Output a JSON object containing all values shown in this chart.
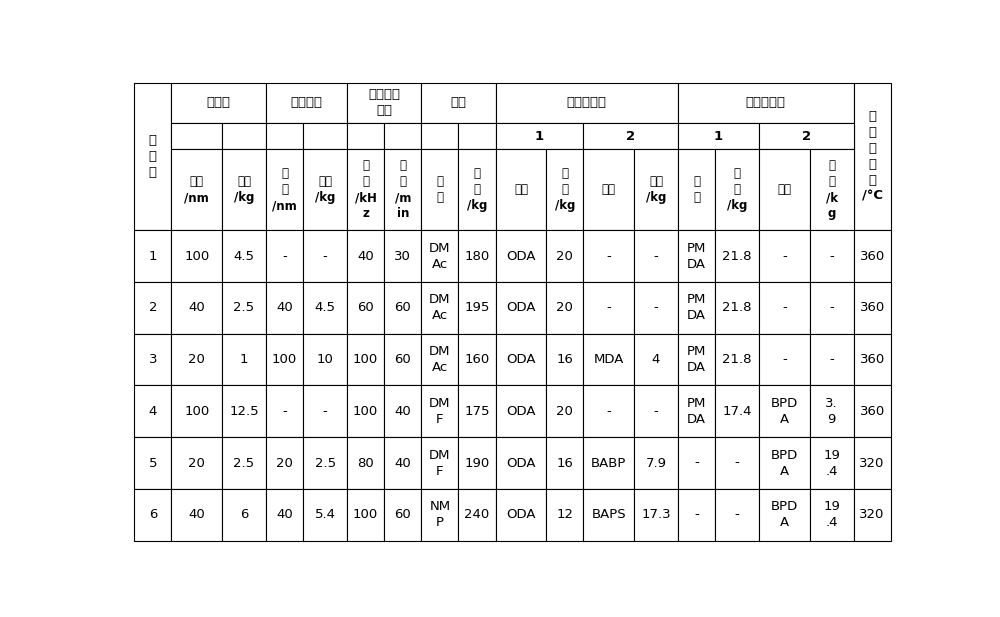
{
  "bg_color": "#ffffff",
  "text_color": "#000000",
  "col_widths_rel": [
    2.2,
    3.0,
    2.6,
    2.2,
    2.6,
    2.2,
    2.2,
    2.2,
    2.2,
    3.0,
    2.2,
    3.0,
    2.6,
    2.2,
    2.6,
    3.0,
    2.6,
    2.2
  ],
  "row_heights_rel": [
    5.5,
    3.5,
    11.0,
    7.0,
    7.0,
    7.0,
    7.0,
    7.0,
    7.0
  ],
  "header_row0": [
    {
      "text": "实\n施\n例",
      "c0": 0,
      "c1": 1,
      "r0": 0,
      "r1": 3
    },
    {
      "text": "碳酸馒",
      "c0": 1,
      "c1": 3,
      "r0": 0,
      "r1": 1
    },
    {
      "text": "二氧化硫",
      "c0": 3,
      "c1": 5,
      "r0": 0,
      "r1": 1
    },
    {
      "text": "超声处理\n条件",
      "c0": 5,
      "c1": 7,
      "r0": 0,
      "r1": 1
    },
    {
      "text": "溶剂",
      "c0": 7,
      "c1": 9,
      "r0": 0,
      "r1": 1
    },
    {
      "text": "芳香族二胺",
      "c0": 9,
      "c1": 13,
      "r0": 0,
      "r1": 1
    },
    {
      "text": "芳香族二酆",
      "c0": 13,
      "c1": 17,
      "r0": 0,
      "r1": 1
    },
    {
      "text": "亚\n胺\n化\n温\n度\n/°C",
      "c0": 17,
      "c1": 18,
      "r0": 0,
      "r1": 3
    }
  ],
  "header_row1": [
    {
      "text": "",
      "c0": 1,
      "c1": 2,
      "r0": 1,
      "r1": 2
    },
    {
      "text": "",
      "c0": 2,
      "c1": 3,
      "r0": 1,
      "r1": 2
    },
    {
      "text": "",
      "c0": 3,
      "c1": 4,
      "r0": 1,
      "r1": 2
    },
    {
      "text": "",
      "c0": 4,
      "c1": 5,
      "r0": 1,
      "r1": 2
    },
    {
      "text": "",
      "c0": 5,
      "c1": 6,
      "r0": 1,
      "r1": 2
    },
    {
      "text": "",
      "c0": 6,
      "c1": 7,
      "r0": 1,
      "r1": 2
    },
    {
      "text": "",
      "c0": 7,
      "c1": 8,
      "r0": 1,
      "r1": 2
    },
    {
      "text": "",
      "c0": 8,
      "c1": 9,
      "r0": 1,
      "r1": 2
    },
    {
      "text": "1",
      "c0": 9,
      "c1": 11,
      "r0": 1,
      "r1": 2
    },
    {
      "text": "2",
      "c0": 11,
      "c1": 13,
      "r0": 1,
      "r1": 2
    },
    {
      "text": "1",
      "c0": 13,
      "c1": 15,
      "r0": 1,
      "r1": 2
    },
    {
      "text": "2",
      "c0": 15,
      "c1": 17,
      "r0": 1,
      "r1": 2
    }
  ],
  "header_row2": [
    {
      "text": "粒径\n/nm",
      "c0": 1,
      "c1": 2
    },
    {
      "text": "质量\n/kg",
      "c0": 2,
      "c1": 3
    },
    {
      "text": "粒\n径\n/nm",
      "c0": 3,
      "c1": 4
    },
    {
      "text": "质量\n/kg",
      "c0": 4,
      "c1": 5
    },
    {
      "text": "频\n率\n/kH\nz",
      "c0": 5,
      "c1": 6
    },
    {
      "text": "时\n间\n/m\nin",
      "c0": 6,
      "c1": 7
    },
    {
      "text": "品\n种",
      "c0": 7,
      "c1": 8
    },
    {
      "text": "质\n量\n/kg",
      "c0": 8,
      "c1": 9
    },
    {
      "text": "品种",
      "c0": 9,
      "c1": 10
    },
    {
      "text": "质\n量\n/kg",
      "c0": 10,
      "c1": 11
    },
    {
      "text": "品种",
      "c0": 11,
      "c1": 12
    },
    {
      "text": "质量\n/kg",
      "c0": 12,
      "c1": 13
    },
    {
      "text": "品\n种",
      "c0": 13,
      "c1": 14
    },
    {
      "text": "质\n量\n/kg",
      "c0": 14,
      "c1": 15
    },
    {
      "text": "品种",
      "c0": 15,
      "c1": 16
    },
    {
      "text": "质\n量\n/k\ng",
      "c0": 16,
      "c1": 17
    }
  ],
  "data_rows": [
    [
      "1",
      "100",
      "4.5",
      "-",
      "-",
      "40",
      "30",
      "DM\nAc",
      "180",
      "ODA",
      "20",
      "-",
      "-",
      "PM\nDA",
      "21.8",
      "-",
      "-",
      "360"
    ],
    [
      "2",
      "40",
      "2.5",
      "40",
      "4.5",
      "60",
      "60",
      "DM\nAc",
      "195",
      "ODA",
      "20",
      "-",
      "-",
      "PM\nDA",
      "21.8",
      "-",
      "-",
      "360"
    ],
    [
      "3",
      "20",
      "1",
      "100",
      "10",
      "100",
      "60",
      "DM\nAc",
      "160",
      "ODA",
      "16",
      "MDA",
      "4",
      "PM\nDA",
      "21.8",
      "-",
      "-",
      "360"
    ],
    [
      "4",
      "100",
      "12.5",
      "-",
      "-",
      "100",
      "40",
      "DM\nF",
      "175",
      "ODA",
      "20",
      "-",
      "-",
      "PM\nDA",
      "17.4",
      "BPD\nA",
      "3.\n9",
      "360"
    ],
    [
      "5",
      "20",
      "2.5",
      "20",
      "2.5",
      "80",
      "40",
      "DM\nF",
      "190",
      "ODA",
      "16",
      "BABP",
      "7.9",
      "-",
      "-",
      "BPD\nA",
      "19\n.4",
      "320"
    ],
    [
      "6",
      "40",
      "6",
      "40",
      "5.4",
      "100",
      "60",
      "NM\nP",
      "240",
      "ODA",
      "12",
      "BAPS",
      "17.3",
      "-",
      "-",
      "BPD\nA",
      "19\n.4",
      "320"
    ]
  ]
}
